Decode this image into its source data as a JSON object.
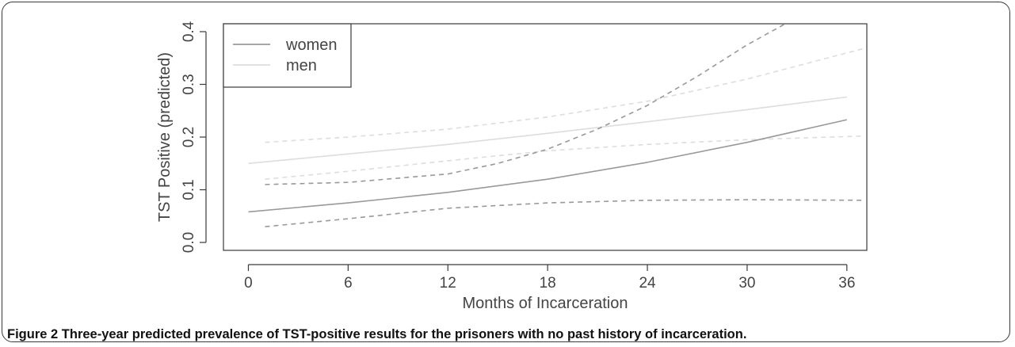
{
  "figure": {
    "label": "Figure 2",
    "caption": "Three-year predicted prevalence of TST-positive results for the prisoners with no past history of incarceration."
  },
  "chart_data": {
    "type": "line",
    "xlabel": "Months of Incarceration",
    "ylabel": "TST Positive (predicted)",
    "xlim": [
      -1.5,
      37.2
    ],
    "ylim": [
      -0.015,
      0.415
    ],
    "xticks": [
      0,
      6,
      12,
      18,
      24,
      30,
      36
    ],
    "yticks": [
      0.0,
      0.1,
      0.2,
      0.3,
      0.4
    ],
    "xtick_labels": [
      "0",
      "6",
      "12",
      "18",
      "24",
      "30",
      "36"
    ],
    "ytick_labels": [
      "0.0",
      "0.1",
      "0.2",
      "0.3",
      "0.4"
    ],
    "legend_position": "top-left",
    "legend": [
      {
        "label": "women",
        "color": "#999999"
      },
      {
        "label": "men",
        "color": "#dddddd"
      }
    ],
    "series": [
      {
        "name": "women",
        "role": "estimate",
        "style": "solid",
        "color": "#999999",
        "x": [
          0,
          6,
          12,
          18,
          24,
          30,
          36
        ],
        "y": [
          0.058,
          0.075,
          0.095,
          0.12,
          0.152,
          0.19,
          0.233
        ]
      },
      {
        "role": "upper bound",
        "group": "women",
        "style": "dashed",
        "color": "#999999",
        "x": [
          1,
          6,
          12,
          15,
          18,
          21,
          24,
          27,
          30,
          32.3
        ],
        "y": [
          0.11,
          0.114,
          0.13,
          0.15,
          0.177,
          0.215,
          0.26,
          0.315,
          0.375,
          0.415
        ]
      },
      {
        "role": "lower bound",
        "group": "women",
        "style": "dashed",
        "color": "#999999",
        "x": [
          1,
          6,
          12,
          18,
          24,
          30,
          37
        ],
        "y": [
          0.03,
          0.045,
          0.065,
          0.075,
          0.08,
          0.081,
          0.08
        ]
      },
      {
        "name": "men",
        "role": "estimate",
        "style": "solid",
        "color": "#dddddd",
        "x": [
          0,
          6,
          12,
          18,
          24,
          30,
          36
        ],
        "y": [
          0.15,
          0.168,
          0.186,
          0.207,
          0.229,
          0.252,
          0.276
        ]
      },
      {
        "role": "upper bound",
        "group": "men",
        "style": "dashed",
        "color": "#dddddd",
        "x": [
          1,
          6,
          12,
          18,
          24,
          30,
          37
        ],
        "y": [
          0.19,
          0.2,
          0.215,
          0.238,
          0.268,
          0.31,
          0.368
        ]
      },
      {
        "role": "lower bound",
        "group": "men",
        "style": "dashed",
        "color": "#dddddd",
        "x": [
          1,
          6,
          12,
          18,
          24,
          30,
          37
        ],
        "y": [
          0.12,
          0.135,
          0.155,
          0.174,
          0.186,
          0.195,
          0.202
        ]
      }
    ]
  }
}
